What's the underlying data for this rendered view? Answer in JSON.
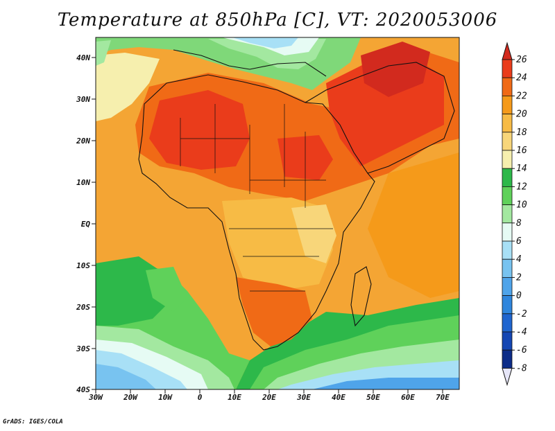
{
  "title": "Temperature at 850hPa [C], VT: 2020053006",
  "credit": "GrADS: IGES/COLA",
  "map": {
    "lon_ticks": [
      "30W",
      "20W",
      "10W",
      "0",
      "10E",
      "20E",
      "30E",
      "40E",
      "50E",
      "60E",
      "70E"
    ],
    "lat_ticks": [
      "40N",
      "30N",
      "20N",
      "10N",
      "EQ",
      "10S",
      "20S",
      "30S",
      "40S"
    ]
  },
  "colorbar": {
    "labels": [
      "26",
      "24",
      "22",
      "20",
      "18",
      "16",
      "14",
      "12",
      "10",
      "8",
      "6",
      "4",
      "2",
      "0",
      "-2",
      "-4",
      "-6",
      "-8"
    ],
    "colors": [
      "#d22a1e",
      "#ea3c1b",
      "#f06a16",
      "#f59a1a",
      "#f7bb45",
      "#f8d67a",
      "#f6efae",
      "#2db84a",
      "#5fd15a",
      "#a3e8a0",
      "#e6fbf4",
      "#a8e0f6",
      "#78c3f0",
      "#4fa4ea",
      "#2f86dd",
      "#1f65cf",
      "#1446b3",
      "#0c2c88",
      "#091a59"
    ]
  }
}
